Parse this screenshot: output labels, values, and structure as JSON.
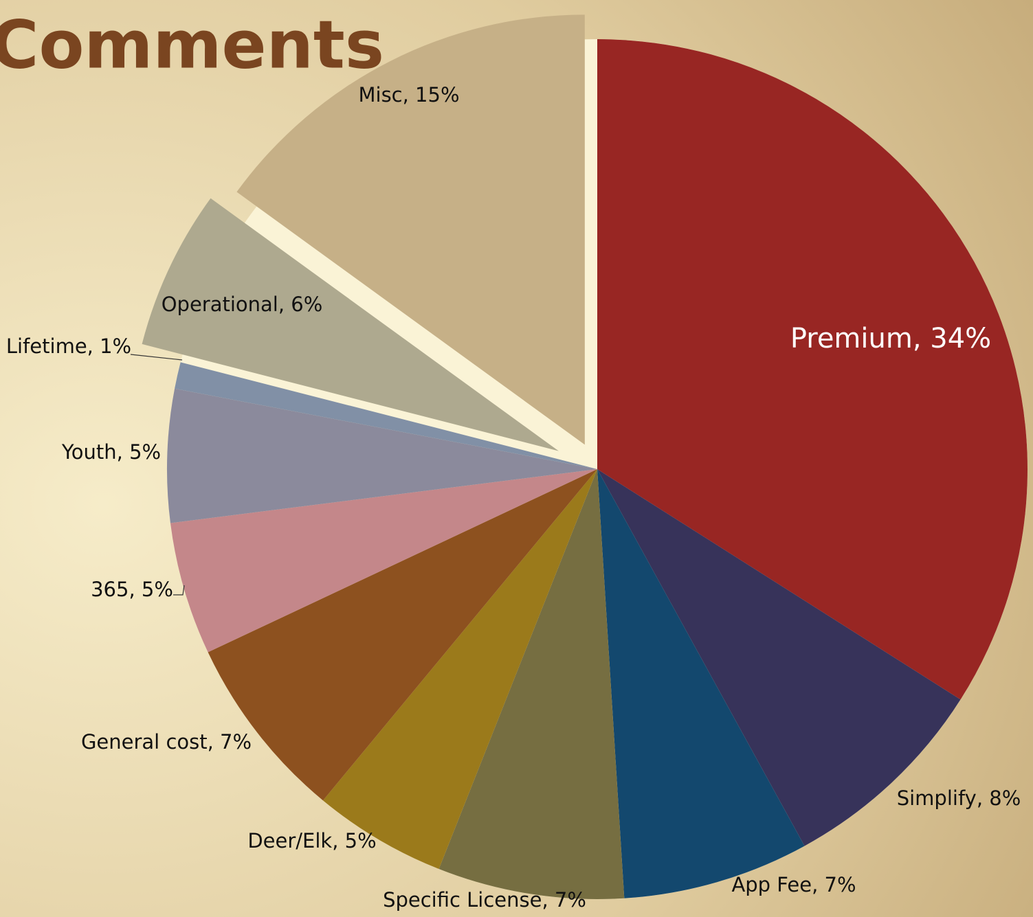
{
  "chart_data": {
    "type": "pie",
    "title": "Comments",
    "values": [
      34,
      8,
      7,
      7,
      5,
      7,
      5,
      5,
      1,
      6,
      15
    ],
    "value_labels": [
      "Premium, 34%",
      "Simplify, 8%",
      "App Fee, 7%",
      "Specific License, 7%",
      "Deer/Elk, 5%",
      "General cost, 7%",
      "365, 5%",
      "Youth, 5%",
      "Lifetime, 1%",
      "Operational, 6%",
      "Misc, 15%"
    ],
    "colors": [
      "#982623",
      "#37335a",
      "#13486e",
      "#766e41",
      "#9b7a1b",
      "#8d511f",
      "#c4878a",
      "#8b8a9c",
      "#8190a6",
      "#aea98f",
      "#c6b087"
    ]
  }
}
